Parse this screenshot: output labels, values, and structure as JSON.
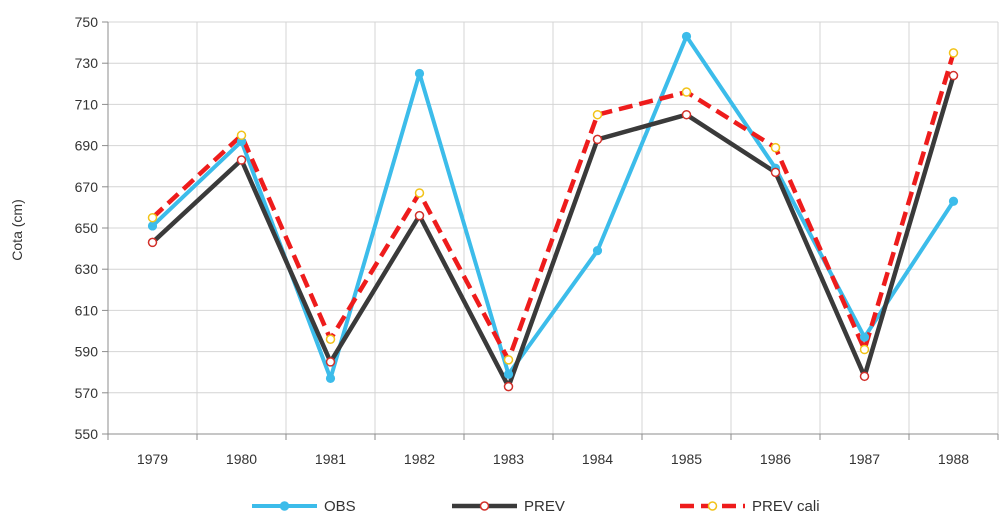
{
  "chart_data": {
    "type": "line",
    "title": "",
    "xlabel": "",
    "ylabel": "Cota (cm)",
    "categories": [
      "1979",
      "1980",
      "1981",
      "1982",
      "1983",
      "1984",
      "1985",
      "1986",
      "1987",
      "1988"
    ],
    "ylim": [
      550,
      750
    ],
    "yticks": [
      550,
      570,
      590,
      610,
      630,
      650,
      670,
      690,
      710,
      730,
      750
    ],
    "grid": true,
    "legend_position": "bottom",
    "series": [
      {
        "name": "OBS",
        "values": [
          651,
          692,
          577,
          725,
          579,
          639,
          743,
          679,
          597,
          663
        ],
        "color": "#3cbcea",
        "marker_color": "#3cbcea",
        "style": "solid"
      },
      {
        "name": "PREV",
        "values": [
          643,
          683,
          585,
          656,
          573,
          693,
          705,
          677,
          578,
          724
        ],
        "color": "#3a3a3a",
        "marker_color": "#d2302a",
        "style": "solid"
      },
      {
        "name": "PREV cali",
        "values": [
          655,
          695,
          596,
          667,
          586,
          705,
          716,
          689,
          591,
          735
        ],
        "color": "#ee1c1c",
        "marker_color": "#f2c318",
        "style": "dashed"
      }
    ]
  }
}
